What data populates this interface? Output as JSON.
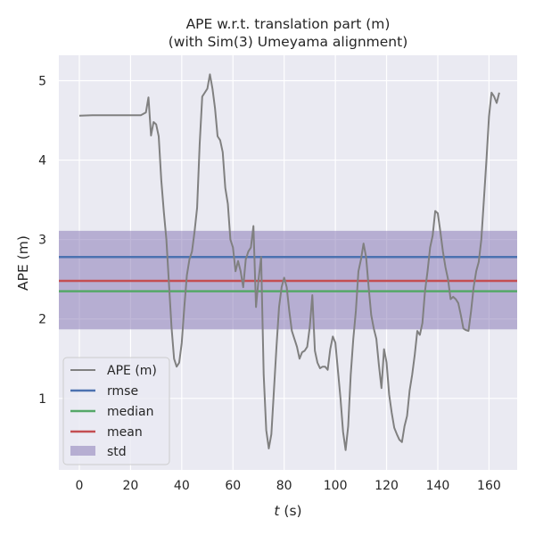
{
  "chart_data": {
    "type": "line",
    "title_line1": "APE w.r.t. translation part (m)",
    "title_line2": "(with Sim(3) Umeyama alignment)",
    "xlabel_var": "t",
    "xlabel_unit": " (s)",
    "ylabel": "APE (m)",
    "xlim": [
      -8,
      171
    ],
    "ylim": [
      0.1,
      5.32
    ],
    "x_ticks": [
      0,
      20,
      40,
      60,
      80,
      100,
      120,
      140,
      160
    ],
    "y_ticks": [
      1,
      2,
      3,
      4,
      5
    ],
    "grid": true,
    "legend_position": "lower-left",
    "background_color": "#eaeaf2",
    "series": [
      {
        "name": "APE (m)",
        "color": "#808080",
        "points": [
          [
            0,
            4.56
          ],
          [
            5,
            4.565
          ],
          [
            10,
            4.565
          ],
          [
            15,
            4.565
          ],
          [
            20,
            4.565
          ],
          [
            24,
            4.565
          ],
          [
            26,
            4.6
          ],
          [
            27,
            4.79
          ],
          [
            28,
            4.31
          ],
          [
            29,
            4.48
          ],
          [
            30,
            4.45
          ],
          [
            31,
            4.3
          ],
          [
            32,
            3.75
          ],
          [
            33,
            3.35
          ],
          [
            34,
            3.0
          ],
          [
            35,
            2.45
          ],
          [
            36,
            1.9
          ],
          [
            37,
            1.5
          ],
          [
            38,
            1.4
          ],
          [
            39,
            1.45
          ],
          [
            40,
            1.7
          ],
          [
            41,
            2.15
          ],
          [
            42,
            2.55
          ],
          [
            43,
            2.75
          ],
          [
            44,
            2.85
          ],
          [
            45,
            3.1
          ],
          [
            46,
            3.4
          ],
          [
            47,
            4.2
          ],
          [
            48,
            4.8
          ],
          [
            49,
            4.85
          ],
          [
            50,
            4.9
          ],
          [
            51,
            5.08
          ],
          [
            52,
            4.9
          ],
          [
            53,
            4.65
          ],
          [
            54,
            4.3
          ],
          [
            55,
            4.25
          ],
          [
            56,
            4.1
          ],
          [
            57,
            3.65
          ],
          [
            58,
            3.45
          ],
          [
            59,
            3.0
          ],
          [
            60,
            2.9
          ],
          [
            61,
            2.6
          ],
          [
            62,
            2.73
          ],
          [
            63,
            2.6
          ],
          [
            64,
            2.4
          ],
          [
            65,
            2.75
          ],
          [
            66,
            2.85
          ],
          [
            67,
            2.9
          ],
          [
            68,
            3.17
          ],
          [
            69,
            2.15
          ],
          [
            70,
            2.5
          ],
          [
            71,
            2.78
          ],
          [
            72,
            1.3
          ],
          [
            73,
            0.6
          ],
          [
            74,
            0.37
          ],
          [
            75,
            0.55
          ],
          [
            76,
            1.1
          ],
          [
            77,
            1.65
          ],
          [
            78,
            2.15
          ],
          [
            79,
            2.4
          ],
          [
            80,
            2.52
          ],
          [
            81,
            2.4
          ],
          [
            82,
            2.1
          ],
          [
            83,
            1.85
          ],
          [
            84,
            1.75
          ],
          [
            85,
            1.65
          ],
          [
            86,
            1.5
          ],
          [
            87,
            1.58
          ],
          [
            88,
            1.6
          ],
          [
            89,
            1.65
          ],
          [
            90,
            1.9
          ],
          [
            91,
            2.3
          ],
          [
            92,
            1.6
          ],
          [
            93,
            1.45
          ],
          [
            94,
            1.38
          ],
          [
            95,
            1.4
          ],
          [
            96,
            1.4
          ],
          [
            97,
            1.36
          ],
          [
            98,
            1.62
          ],
          [
            99,
            1.78
          ],
          [
            100,
            1.7
          ],
          [
            101,
            1.35
          ],
          [
            102,
            1.0
          ],
          [
            103,
            0.58
          ],
          [
            104,
            0.35
          ],
          [
            105,
            0.65
          ],
          [
            106,
            1.3
          ],
          [
            107,
            1.75
          ],
          [
            108,
            2.1
          ],
          [
            109,
            2.6
          ],
          [
            110,
            2.75
          ],
          [
            111,
            2.95
          ],
          [
            112,
            2.78
          ],
          [
            113,
            2.4
          ],
          [
            114,
            2.05
          ],
          [
            115,
            1.88
          ],
          [
            116,
            1.75
          ],
          [
            117,
            1.42
          ],
          [
            118,
            1.13
          ],
          [
            119,
            1.62
          ],
          [
            120,
            1.45
          ],
          [
            121,
            1.05
          ],
          [
            122,
            0.82
          ],
          [
            123,
            0.63
          ],
          [
            124,
            0.55
          ],
          [
            125,
            0.48
          ],
          [
            126,
            0.45
          ],
          [
            127,
            0.65
          ],
          [
            128,
            0.78
          ],
          [
            129,
            1.1
          ],
          [
            130,
            1.3
          ],
          [
            131,
            1.55
          ],
          [
            132,
            1.85
          ],
          [
            133,
            1.8
          ],
          [
            134,
            1.95
          ],
          [
            135,
            2.35
          ],
          [
            136,
            2.6
          ],
          [
            137,
            2.9
          ],
          [
            138,
            3.05
          ],
          [
            139,
            3.36
          ],
          [
            140,
            3.33
          ],
          [
            141,
            3.1
          ],
          [
            142,
            2.85
          ],
          [
            143,
            2.65
          ],
          [
            144,
            2.5
          ],
          [
            145,
            2.25
          ],
          [
            146,
            2.28
          ],
          [
            147,
            2.25
          ],
          [
            148,
            2.2
          ],
          [
            149,
            2.05
          ],
          [
            150,
            1.88
          ],
          [
            151,
            1.86
          ],
          [
            152,
            1.85
          ],
          [
            153,
            2.1
          ],
          [
            154,
            2.4
          ],
          [
            155,
            2.6
          ],
          [
            156,
            2.72
          ],
          [
            157,
            3.0
          ],
          [
            158,
            3.5
          ],
          [
            159,
            4.0
          ],
          [
            160,
            4.55
          ],
          [
            161,
            4.85
          ],
          [
            162,
            4.8
          ],
          [
            163,
            4.72
          ],
          [
            164,
            4.85
          ]
        ]
      }
    ],
    "stats": {
      "rmse": {
        "label": "rmse",
        "value": 2.78,
        "color": "#4c72b0"
      },
      "median": {
        "label": "median",
        "value": 2.35,
        "color": "#55a868"
      },
      "mean": {
        "label": "mean",
        "value": 2.48,
        "color": "#c44e52"
      },
      "std": {
        "label": "std",
        "low": 1.87,
        "high": 3.11,
        "color": "#8172b2"
      }
    }
  }
}
